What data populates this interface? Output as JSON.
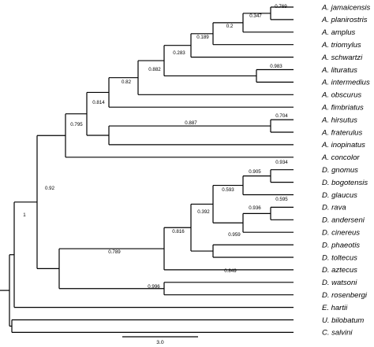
{
  "tree": {
    "taxa": [
      {
        "id": "t1",
        "name": "A. jamaicensis"
      },
      {
        "id": "t2",
        "name": "A. planirostris"
      },
      {
        "id": "t3",
        "name": "A. amplus"
      },
      {
        "id": "t4",
        "name": "A. triomylus"
      },
      {
        "id": "t5",
        "name": "A. schwartzi"
      },
      {
        "id": "t6",
        "name": "A. lituratus"
      },
      {
        "id": "t7",
        "name": "A. intermedius"
      },
      {
        "id": "t8",
        "name": "A. obscurus"
      },
      {
        "id": "t9",
        "name": "A. fimbriatus"
      },
      {
        "id": "t10",
        "name": "A. hirsutus"
      },
      {
        "id": "t11",
        "name": "A. fraterulus"
      },
      {
        "id": "t12",
        "name": "A. inopinatus"
      },
      {
        "id": "t13",
        "name": "A. concolor"
      },
      {
        "id": "t14",
        "name": "D. gnomus"
      },
      {
        "id": "t15",
        "name": "D. bogotensis"
      },
      {
        "id": "t16",
        "name": "D. glaucus"
      },
      {
        "id": "t17",
        "name": "D. rava"
      },
      {
        "id": "t18",
        "name": "D. anderseni"
      },
      {
        "id": "t19",
        "name": "D. cinereus"
      },
      {
        "id": "t20",
        "name": "D. phaeotis"
      },
      {
        "id": "t21",
        "name": "D. toltecus"
      },
      {
        "id": "t22",
        "name": "D. aztecus"
      },
      {
        "id": "t23",
        "name": "D. watsoni"
      },
      {
        "id": "t24",
        "name": "D. rosenbergi"
      },
      {
        "id": "t25",
        "name": "E. hartii"
      },
      {
        "id": "t26",
        "name": "U. bilobatum"
      },
      {
        "id": "t27",
        "name": "C. salvini"
      }
    ],
    "clades": [
      {
        "id": "n1",
        "support": "0.769",
        "children": [
          "t1",
          "t2"
        ]
      },
      {
        "id": "n2",
        "support": "0.347",
        "children": [
          "n1",
          "t3"
        ]
      },
      {
        "id": "n3",
        "support": "0.2",
        "children": [
          "n2",
          "t4"
        ]
      },
      {
        "id": "n4",
        "support": "0.189",
        "children": [
          "n3",
          "t5"
        ]
      },
      {
        "id": "n5",
        "support": "0.983",
        "children": [
          "t6",
          "t7"
        ]
      },
      {
        "id": "n6",
        "support": "0.283",
        "children": [
          "n4",
          "n5"
        ]
      },
      {
        "id": "n7",
        "support": "0.882",
        "children": [
          "n6",
          "t8"
        ]
      },
      {
        "id": "n8",
        "support": "0.82",
        "children": [
          "n7",
          "t9"
        ]
      },
      {
        "id": "n9",
        "support": "0.704",
        "children": [
          "t10",
          "t11"
        ]
      },
      {
        "id": "n10",
        "support": "0.887",
        "children": [
          "n9",
          "t12"
        ]
      },
      {
        "id": "n11",
        "support": "0.814",
        "children": [
          "n8",
          "n10"
        ]
      },
      {
        "id": "n12",
        "support": "0.795",
        "children": [
          "n11",
          "t13"
        ]
      },
      {
        "id": "n13",
        "support": "0.934",
        "children": [
          "t14",
          "t15"
        ]
      },
      {
        "id": "n14",
        "support": "0.905",
        "children": [
          "n13",
          "t16"
        ]
      },
      {
        "id": "n15",
        "support": "0.595",
        "children": [
          "t17",
          "t18"
        ]
      },
      {
        "id": "n16",
        "support": "0.936",
        "children": [
          "n15",
          "t19"
        ]
      },
      {
        "id": "n17",
        "support": "0.593",
        "children": [
          "n14",
          "n16"
        ]
      },
      {
        "id": "n18",
        "support": "0.959",
        "children": [
          "t20",
          "t21"
        ]
      },
      {
        "id": "n19",
        "support": "0.392",
        "children": [
          "n17",
          "n18"
        ]
      },
      {
        "id": "n20",
        "support": "0.816",
        "children": [
          "n19",
          "t22"
        ]
      },
      {
        "id": "n21",
        "support": "0.849",
        "children": [
          "t23",
          "t24"
        ]
      },
      {
        "id": "n22",
        "support": "0.789",
        "children": [
          "n20",
          "n21"
        ]
      },
      {
        "id": "n23",
        "support": "0.92",
        "children": [
          "n12",
          "n22"
        ]
      },
      {
        "id": "n24",
        "support": "1",
        "children": [
          "n23",
          "t25"
        ]
      },
      {
        "id": "n25",
        "support": "0.996",
        "children": [
          "t26",
          "t27"
        ]
      },
      {
        "id": "n26",
        "support": "",
        "children": [
          "n24",
          "n25"
        ]
      }
    ],
    "root": "n26"
  },
  "scale_bar": {
    "label": "3.0"
  }
}
